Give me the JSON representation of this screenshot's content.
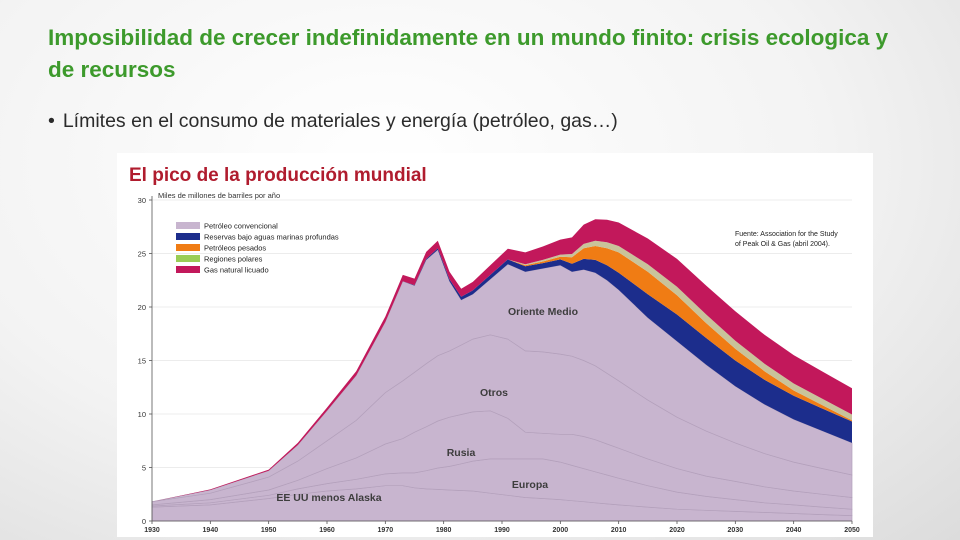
{
  "slide": {
    "title": "Imposibilidad de crecer indefinidamente en un mundo finito: crisis ecologica y de recursos",
    "bullet_marker": "•",
    "bullet_text": "Límites en el consumo de materiales y energía (petróleo, gas…)"
  },
  "chart_data": {
    "type": "area",
    "title": "El pico de la producción mundial",
    "ylabel": "Miles de millones de barriles por año",
    "ylim": [
      0,
      30
    ],
    "y_ticks": [
      "0",
      "5",
      "10",
      "15",
      "20",
      "25",
      "30"
    ],
    "x_ticks": [
      "1930",
      "1940",
      "1950",
      "1960",
      "1970",
      "1980",
      "1990",
      "2000",
      "2010",
      "2020",
      "2030",
      "2040",
      "2050"
    ],
    "source_lines": [
      "Fuente: Association for the Study",
      "of Peak Oil & Gas (abril 2004)."
    ],
    "region_labels": [
      "EE UU menos Alaska",
      "Europa",
      "Rusia",
      "Otros",
      "Oriente Medio"
    ],
    "colors": {
      "conventional": "#c8b5cf",
      "deepwater": "#1c2d8c",
      "heavy": "#f07c14",
      "polar": "#c9c39a",
      "ngl": "#c2185b"
    },
    "legend": [
      {
        "name": "Petróleo convencional",
        "color": "#c8b5cf"
      },
      {
        "name": "Reservas bajo aguas marinas profundas",
        "color": "#1c2d8c"
      },
      {
        "name": "Petróleos pesados",
        "color": "#f07c14"
      },
      {
        "name": "Regiones polares",
        "color": "#9acd55"
      },
      {
        "name": "Gas natural licuado",
        "color": "#c2185b"
      }
    ],
    "x": [
      1930,
      1940,
      1950,
      1955,
      1960,
      1965,
      1970,
      1973,
      1975,
      1977,
      1979,
      1981,
      1983,
      1985,
      1988,
      1991,
      1994,
      1997,
      2000,
      2002,
      2004,
      2006,
      2008,
      2010,
      2015,
      2020,
      2025,
      2030,
      2035,
      2040,
      2045,
      2050
    ],
    "series": [
      {
        "name": "EE UU menos Alaska",
        "values": [
          1.3,
          1.5,
          2.1,
          2.5,
          2.8,
          3.0,
          3.3,
          3.3,
          3.1,
          3.0,
          2.95,
          2.9,
          2.85,
          2.8,
          2.6,
          2.4,
          2.2,
          2.1,
          2.0,
          1.9,
          1.8,
          1.7,
          1.6,
          1.5,
          1.3,
          1.1,
          1.0,
          0.9,
          0.8,
          0.7,
          0.6,
          0.5
        ]
      },
      {
        "name": "Europa",
        "values": [
          0.1,
          0.2,
          0.3,
          0.5,
          0.7,
          0.9,
          1.1,
          1.2,
          1.4,
          1.7,
          2.0,
          2.2,
          2.5,
          2.8,
          3.2,
          3.4,
          3.6,
          3.7,
          3.5,
          3.3,
          3.1,
          2.9,
          2.7,
          2.5,
          2.0,
          1.6,
          1.3,
          1.1,
          0.9,
          0.8,
          0.7,
          0.6
        ]
      },
      {
        "name": "Rusia",
        "values": [
          0.1,
          0.3,
          0.5,
          0.8,
          1.4,
          2.0,
          2.8,
          3.2,
          3.8,
          4.1,
          4.4,
          4.6,
          4.6,
          4.6,
          4.5,
          3.8,
          2.5,
          2.4,
          2.6,
          2.9,
          3.0,
          3.0,
          2.9,
          2.8,
          2.5,
          2.2,
          1.9,
          1.7,
          1.5,
          1.3,
          1.2,
          1.1
        ]
      },
      {
        "name": "Otros",
        "values": [
          0.3,
          0.6,
          1.2,
          1.8,
          2.6,
          3.5,
          4.8,
          5.4,
          5.6,
          5.9,
          6.1,
          6.2,
          6.5,
          6.8,
          7.1,
          7.4,
          7.6,
          7.6,
          7.5,
          7.3,
          7.1,
          6.9,
          6.6,
          6.3,
          5.5,
          4.8,
          4.2,
          3.6,
          3.1,
          2.7,
          2.4,
          2.1
        ]
      },
      {
        "name": "Oriente Medio",
        "values": [
          0.0,
          0.3,
          0.6,
          1.5,
          2.8,
          4.2,
          6.6,
          9.3,
          8.1,
          9.7,
          9.9,
          6.5,
          4.2,
          4.2,
          5.2,
          7.0,
          7.4,
          7.8,
          8.3,
          7.9,
          8.5,
          8.7,
          8.7,
          8.5,
          7.7,
          7.1,
          6.2,
          5.3,
          4.6,
          4.0,
          3.5,
          3.0
        ]
      },
      {
        "name": "Reservas bajo aguas marinas profundas",
        "values": [
          0,
          0,
          0,
          0,
          0,
          0,
          0,
          0,
          0.05,
          0.1,
          0.15,
          0.2,
          0.3,
          0.35,
          0.4,
          0.45,
          0.5,
          0.5,
          0.55,
          0.75,
          1.0,
          1.2,
          1.4,
          1.6,
          2.2,
          2.5,
          2.5,
          2.4,
          2.3,
          2.2,
          2.1,
          2.0
        ]
      },
      {
        "name": "Petróleos pesados",
        "values": [
          0,
          0,
          0,
          0,
          0,
          0,
          0,
          0,
          0,
          0,
          0,
          0,
          0,
          0,
          0,
          0,
          0.1,
          0.15,
          0.25,
          0.6,
          1.0,
          1.3,
          1.6,
          1.9,
          2.1,
          1.8,
          1.4,
          1.1,
          0.8,
          0.5,
          0.3,
          0.1
        ]
      },
      {
        "name": "Regiones polares",
        "values": [
          0,
          0,
          0,
          0,
          0,
          0,
          0,
          0,
          0,
          0,
          0,
          0,
          0,
          0,
          0,
          0,
          0.1,
          0.15,
          0.2,
          0.3,
          0.4,
          0.5,
          0.55,
          0.6,
          0.7,
          0.8,
          0.8,
          0.75,
          0.7,
          0.65,
          0.6,
          0.55
        ]
      },
      {
        "name": "Gas natural licuado",
        "values": [
          0,
          0.05,
          0.1,
          0.2,
          0.3,
          0.4,
          0.5,
          0.6,
          0.6,
          0.65,
          0.7,
          0.7,
          0.75,
          0.8,
          0.9,
          1.0,
          1.1,
          1.25,
          1.4,
          1.55,
          1.8,
          2.0,
          2.1,
          2.2,
          2.4,
          2.6,
          2.7,
          2.75,
          2.7,
          2.65,
          2.55,
          2.45
        ]
      }
    ]
  }
}
